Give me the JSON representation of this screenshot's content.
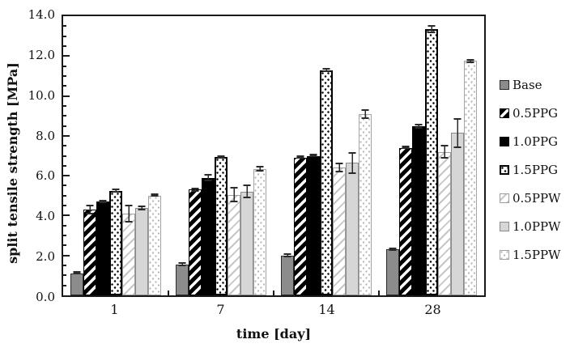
{
  "chart_data": {
    "type": "bar",
    "title": "",
    "xlabel": "time [day]",
    "ylabel": "split tensile strength [MPa]",
    "categories": [
      "1",
      "7",
      "14",
      "28"
    ],
    "ylim": [
      0,
      14
    ],
    "y_major_step": 2,
    "y_minor_step": 0.5,
    "y_tick_labels": [
      "0.0",
      "2.0",
      "4.0",
      "6.0",
      "8.0",
      "10.0",
      "12.0",
      "14.0"
    ],
    "grid": "off",
    "legend_position": "right",
    "error_bars": true,
    "series": [
      {
        "name": "Base",
        "pattern": "solid-gray",
        "values": [
          1.1,
          1.55,
          2.0,
          2.3
        ],
        "errors": [
          0.06,
          0.1,
          0.1,
          0.08
        ]
      },
      {
        "name": "0.5PPG",
        "pattern": "black-diagonal-stripes",
        "values": [
          4.3,
          5.3,
          6.9,
          7.4
        ],
        "errors": [
          0.25,
          0.1,
          0.06,
          0.06
        ]
      },
      {
        "name": "1.0PPG",
        "pattern": "solid-black",
        "values": [
          4.7,
          5.9,
          7.0,
          8.5
        ],
        "errors": [
          0.08,
          0.17,
          0.06,
          0.12
        ]
      },
      {
        "name": "1.5PPG",
        "pattern": "black-dots",
        "values": [
          5.25,
          6.95,
          11.3,
          13.35
        ],
        "errors": [
          0.1,
          0.08,
          0.1,
          0.2
        ]
      },
      {
        "name": "0.5PPW",
        "pattern": "light-diagonal-stripes",
        "values": [
          4.1,
          5.05,
          6.4,
          7.2
        ],
        "errors": [
          0.45,
          0.4,
          0.25,
          0.35
        ]
      },
      {
        "name": "1.0PPW",
        "pattern": "solid-lightgray",
        "values": [
          4.4,
          5.2,
          6.65,
          8.15
        ],
        "errors": [
          0.12,
          0.35,
          0.55,
          0.75
        ]
      },
      {
        "name": "1.5PPW",
        "pattern": "light-dots",
        "values": [
          5.0,
          6.35,
          9.1,
          11.75
        ],
        "errors": [
          0.06,
          0.15,
          0.25,
          0.1
        ]
      }
    ],
    "colors": {
      "base_fill": "#8c8c8c",
      "black": "#000000",
      "lightgray_fill": "#d6d6d6",
      "light_pattern": "#b3b3b3",
      "frame": "#1a1a1a",
      "error_bar": "#2a2a2a"
    }
  }
}
